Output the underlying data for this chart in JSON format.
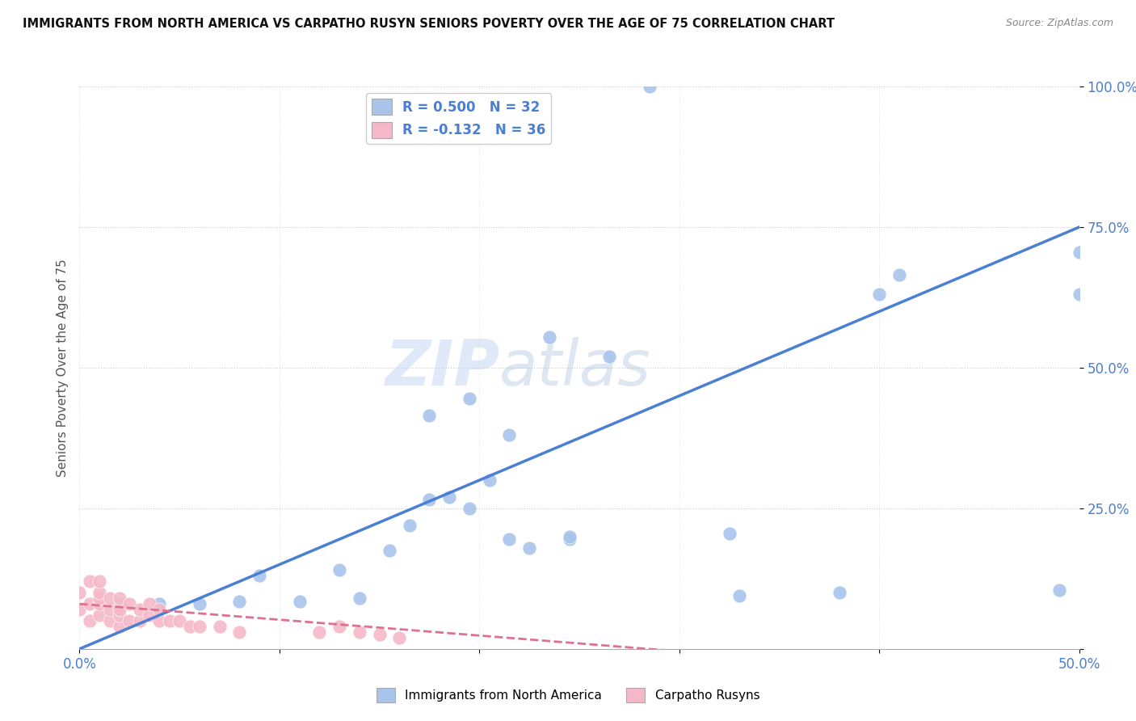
{
  "title": "IMMIGRANTS FROM NORTH AMERICA VS CARPATHO RUSYN SENIORS POVERTY OVER THE AGE OF 75 CORRELATION CHART",
  "source": "Source: ZipAtlas.com",
  "ylabel": "Seniors Poverty Over the Age of 75",
  "xlim": [
    0,
    0.5
  ],
  "ylim": [
    0,
    1.0
  ],
  "xticks": [
    0.0,
    0.1,
    0.2,
    0.3,
    0.4,
    0.5
  ],
  "xticklabels": [
    "0.0%",
    "",
    "",
    "",
    "",
    "50.0%"
  ],
  "yticks": [
    0.0,
    0.25,
    0.5,
    0.75,
    1.0
  ],
  "yticklabels": [
    "",
    "25.0%",
    "50.0%",
    "75.0%",
    "100.0%"
  ],
  "legend_blue_label": "R = 0.500   N = 32",
  "legend_pink_label": "R = -0.132   N = 36",
  "legend_cat1": "Immigrants from North America",
  "legend_cat2": "Carpatho Rusyns",
  "blue_color": "#a8c4ea",
  "pink_color": "#f5b8c8",
  "blue_line_color": "#4a7fd4",
  "pink_line_color": "#e07090",
  "watermark_zip": "ZIP",
  "watermark_atlas": "atlas",
  "blue_points_x": [
    0.285,
    0.04,
    0.06,
    0.09,
    0.11,
    0.13,
    0.155,
    0.165,
    0.175,
    0.185,
    0.195,
    0.205,
    0.215,
    0.175,
    0.195,
    0.215,
    0.225,
    0.245,
    0.235,
    0.265,
    0.245,
    0.38,
    0.4,
    0.49,
    0.5,
    0.02,
    0.08,
    0.14,
    0.33,
    0.325,
    0.41,
    0.5
  ],
  "blue_points_y": [
    1.0,
    0.08,
    0.08,
    0.13,
    0.085,
    0.14,
    0.175,
    0.22,
    0.265,
    0.27,
    0.25,
    0.3,
    0.38,
    0.415,
    0.445,
    0.195,
    0.18,
    0.195,
    0.555,
    0.52,
    0.2,
    0.1,
    0.63,
    0.105,
    0.705,
    0.08,
    0.085,
    0.09,
    0.095,
    0.205,
    0.665,
    0.63
  ],
  "pink_points_x": [
    0.0,
    0.0,
    0.005,
    0.005,
    0.005,
    0.01,
    0.01,
    0.01,
    0.01,
    0.01,
    0.015,
    0.015,
    0.015,
    0.02,
    0.02,
    0.02,
    0.02,
    0.025,
    0.025,
    0.03,
    0.03,
    0.035,
    0.035,
    0.04,
    0.04,
    0.045,
    0.05,
    0.055,
    0.06,
    0.07,
    0.08,
    0.12,
    0.13,
    0.14,
    0.15,
    0.16
  ],
  "pink_points_y": [
    0.07,
    0.1,
    0.05,
    0.08,
    0.12,
    0.06,
    0.08,
    0.09,
    0.1,
    0.12,
    0.05,
    0.07,
    0.09,
    0.04,
    0.06,
    0.07,
    0.09,
    0.05,
    0.08,
    0.05,
    0.07,
    0.06,
    0.08,
    0.05,
    0.07,
    0.05,
    0.05,
    0.04,
    0.04,
    0.04,
    0.03,
    0.03,
    0.04,
    0.03,
    0.025,
    0.02
  ],
  "blue_line_x": [
    0.0,
    0.5
  ],
  "blue_line_y": [
    0.0,
    0.75
  ],
  "pink_line_x": [
    0.0,
    0.32
  ],
  "pink_line_y": [
    0.08,
    -0.01
  ]
}
